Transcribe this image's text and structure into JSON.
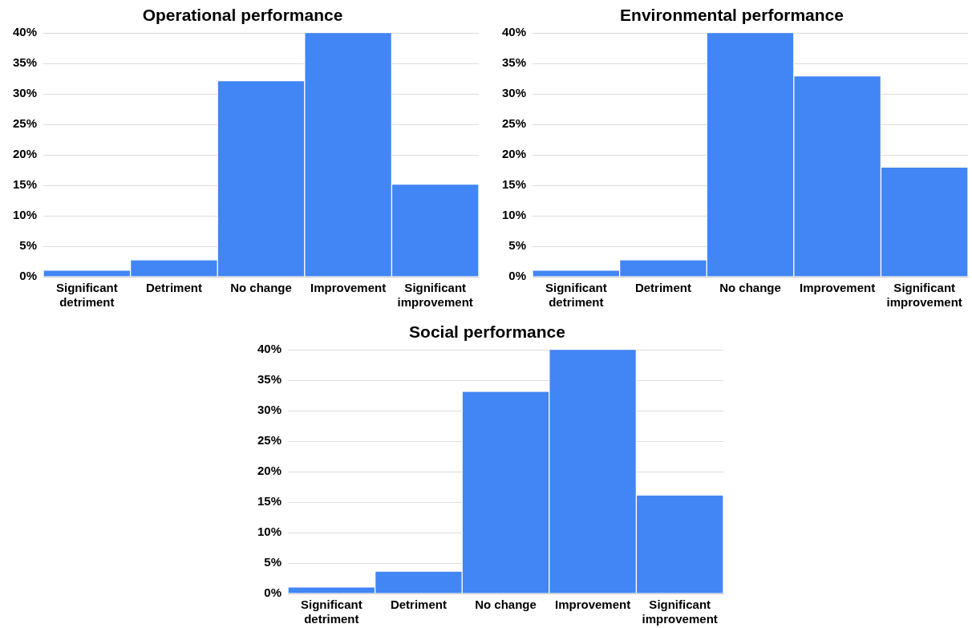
{
  "chart_data": [
    {
      "type": "bar",
      "title": "Operational performance",
      "categories": [
        "Significant detriment",
        "Detriment",
        "No change",
        "Improvement",
        "Significant improvement"
      ],
      "values": [
        1,
        2.7,
        32.1,
        40,
        15.1
      ],
      "color": "#4285f4",
      "ylim": [
        0,
        40
      ],
      "yticks": [
        {
          "value": 0,
          "label": "0%"
        },
        {
          "value": 5,
          "label": "5%"
        },
        {
          "value": 10,
          "label": "10%"
        },
        {
          "value": 15,
          "label": "15%"
        },
        {
          "value": 20,
          "label": "20%"
        },
        {
          "value": 25,
          "label": "25%"
        },
        {
          "value": 30,
          "label": "30%"
        },
        {
          "value": 35,
          "label": "35%"
        },
        {
          "value": 40,
          "label": "40%"
        }
      ],
      "grid": "y"
    },
    {
      "type": "bar",
      "title": "Environmental performance",
      "categories": [
        "Significant detriment",
        "Detriment",
        "No change",
        "Improvement",
        "Significant improvement"
      ],
      "values": [
        1,
        2.7,
        40,
        32.9,
        17.9
      ],
      "color": "#4285f4",
      "ylim": [
        0,
        40
      ],
      "yticks": [
        {
          "value": 0,
          "label": "0%"
        },
        {
          "value": 5,
          "label": "5%"
        },
        {
          "value": 10,
          "label": "10%"
        },
        {
          "value": 15,
          "label": "15%"
        },
        {
          "value": 20,
          "label": "20%"
        },
        {
          "value": 25,
          "label": "25%"
        },
        {
          "value": 30,
          "label": "30%"
        },
        {
          "value": 35,
          "label": "35%"
        },
        {
          "value": 40,
          "label": "40%"
        }
      ],
      "grid": "y"
    },
    {
      "type": "bar",
      "title": "Social performance",
      "categories": [
        "Significant detriment",
        "Detriment",
        "No change",
        "Improvement",
        "Significant improvement"
      ],
      "values": [
        1,
        3.6,
        33.1,
        40,
        16.1
      ],
      "color": "#4285f4",
      "ylim": [
        0,
        40
      ],
      "yticks": [
        {
          "value": 0,
          "label": "0%"
        },
        {
          "value": 5,
          "label": "5%"
        },
        {
          "value": 10,
          "label": "10%"
        },
        {
          "value": 15,
          "label": "15%"
        },
        {
          "value": 20,
          "label": "20%"
        },
        {
          "value": 25,
          "label": "25%"
        },
        {
          "value": 30,
          "label": "30%"
        },
        {
          "value": 35,
          "label": "35%"
        },
        {
          "value": 40,
          "label": "40%"
        }
      ],
      "grid": "y"
    }
  ]
}
